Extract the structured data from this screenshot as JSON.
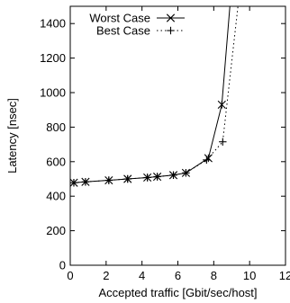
{
  "chart_data": {
    "type": "line",
    "xlabel": "Accepted traffic [Gbit/sec/host]",
    "ylabel": "Latency [nsec]",
    "xlim": [
      0,
      12
    ],
    "ylim": [
      0,
      1500
    ],
    "xticks": [
      0,
      2,
      4,
      6,
      8,
      10,
      12
    ],
    "yticks": [
      0,
      200,
      400,
      600,
      800,
      1000,
      1200,
      1400
    ],
    "xtick_labels": [
      "0",
      "2",
      "4",
      "6",
      "8",
      "10",
      "12"
    ],
    "ytick_labels": [
      "0",
      "200",
      "400",
      "600",
      "800",
      "1000",
      "1200",
      "1400"
    ],
    "grid": false,
    "legend_position": "top-right",
    "series": [
      {
        "name": "Worst Case",
        "line_style": "solid",
        "marker": "asterisk",
        "x": [
          0.2,
          0.85,
          2.15,
          3.2,
          4.3,
          4.85,
          5.75,
          6.45,
          7.7,
          8.45,
          8.9
        ],
        "y": [
          478,
          483,
          492,
          500,
          508,
          513,
          522,
          535,
          620,
          930,
          1500
        ],
        "marker_count": 10
      },
      {
        "name": "Best Case",
        "line_style": "dotted",
        "marker": "plus",
        "x": [
          0.2,
          0.85,
          2.15,
          3.2,
          4.3,
          4.85,
          5.75,
          6.45,
          7.6,
          8.5,
          9.35
        ],
        "y": [
          478,
          483,
          492,
          500,
          508,
          513,
          522,
          535,
          610,
          715,
          1500
        ],
        "marker_count": 10
      }
    ]
  }
}
